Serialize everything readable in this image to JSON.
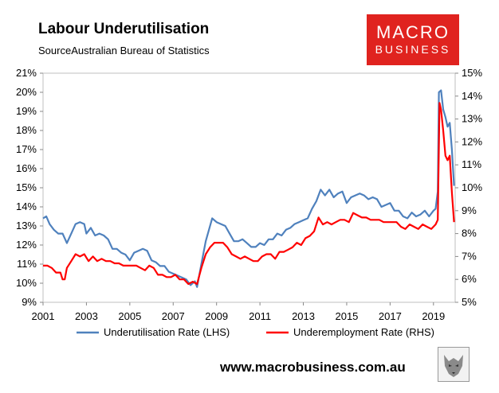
{
  "header": {
    "title": "Labour Underutilisation",
    "source": "SourceAustralian Bureau of Statistics"
  },
  "logo": {
    "line1": "MACRO",
    "line2": "BUSINESS",
    "color": "#e0231f"
  },
  "footer": {
    "url": "www.macrobusiness.com.au"
  },
  "chart_data": {
    "type": "line",
    "x_range": [
      2001.0,
      2020.0
    ],
    "x_ticks": [
      "2001",
      "2003",
      "2005",
      "2007",
      "2009",
      "2011",
      "2013",
      "2015",
      "2017",
      "2019"
    ],
    "y_left": {
      "min": 9,
      "max": 21,
      "ticks": [
        "9%",
        "10%",
        "11%",
        "12%",
        "13%",
        "14%",
        "15%",
        "16%",
        "17%",
        "18%",
        "19%",
        "20%",
        "21%"
      ]
    },
    "y_right": {
      "min": 5,
      "max": 15,
      "ticks": [
        "5%",
        "6%",
        "7%",
        "8%",
        "9%",
        "10%",
        "11%",
        "12%",
        "13%",
        "14%",
        "15%"
      ]
    },
    "grid": false,
    "legend_position": "bottom",
    "series": [
      {
        "name": "Underutilisation Rate (LHS)",
        "axis": "left",
        "color": "#4f81bd",
        "points": [
          [
            2001.0,
            13.4
          ],
          [
            2001.15,
            13.5
          ],
          [
            2001.3,
            13.1
          ],
          [
            2001.5,
            12.8
          ],
          [
            2001.7,
            12.6
          ],
          [
            2001.9,
            12.6
          ],
          [
            2002.1,
            12.1
          ],
          [
            2002.3,
            12.6
          ],
          [
            2002.5,
            13.1
          ],
          [
            2002.7,
            13.2
          ],
          [
            2002.9,
            13.1
          ],
          [
            2003.0,
            12.6
          ],
          [
            2003.2,
            12.9
          ],
          [
            2003.4,
            12.5
          ],
          [
            2003.6,
            12.6
          ],
          [
            2003.8,
            12.5
          ],
          [
            2004.0,
            12.3
          ],
          [
            2004.2,
            11.8
          ],
          [
            2004.4,
            11.8
          ],
          [
            2004.6,
            11.6
          ],
          [
            2004.8,
            11.5
          ],
          [
            2005.0,
            11.2
          ],
          [
            2005.2,
            11.6
          ],
          [
            2005.4,
            11.7
          ],
          [
            2005.6,
            11.8
          ],
          [
            2005.8,
            11.7
          ],
          [
            2006.0,
            11.2
          ],
          [
            2006.2,
            11.1
          ],
          [
            2006.4,
            10.9
          ],
          [
            2006.6,
            10.9
          ],
          [
            2006.8,
            10.6
          ],
          [
            2007.0,
            10.5
          ],
          [
            2007.2,
            10.4
          ],
          [
            2007.4,
            10.3
          ],
          [
            2007.6,
            10.2
          ],
          [
            2007.8,
            9.9
          ],
          [
            2008.0,
            10.1
          ],
          [
            2008.1,
            9.8
          ],
          [
            2008.3,
            11.0
          ],
          [
            2008.5,
            12.2
          ],
          [
            2008.7,
            13.0
          ],
          [
            2008.8,
            13.4
          ],
          [
            2009.0,
            13.2
          ],
          [
            2009.2,
            13.1
          ],
          [
            2009.4,
            13.0
          ],
          [
            2009.6,
            12.6
          ],
          [
            2009.8,
            12.2
          ],
          [
            2010.0,
            12.2
          ],
          [
            2010.2,
            12.3
          ],
          [
            2010.4,
            12.1
          ],
          [
            2010.6,
            11.9
          ],
          [
            2010.8,
            11.9
          ],
          [
            2011.0,
            12.1
          ],
          [
            2011.2,
            12.0
          ],
          [
            2011.4,
            12.3
          ],
          [
            2011.6,
            12.3
          ],
          [
            2011.8,
            12.6
          ],
          [
            2012.0,
            12.5
          ],
          [
            2012.2,
            12.8
          ],
          [
            2012.4,
            12.9
          ],
          [
            2012.6,
            13.1
          ],
          [
            2012.8,
            13.2
          ],
          [
            2013.0,
            13.3
          ],
          [
            2013.2,
            13.4
          ],
          [
            2013.4,
            13.9
          ],
          [
            2013.6,
            14.3
          ],
          [
            2013.8,
            14.9
          ],
          [
            2014.0,
            14.6
          ],
          [
            2014.2,
            14.9
          ],
          [
            2014.4,
            14.5
          ],
          [
            2014.6,
            14.7
          ],
          [
            2014.8,
            14.8
          ],
          [
            2015.0,
            14.2
          ],
          [
            2015.2,
            14.5
          ],
          [
            2015.4,
            14.6
          ],
          [
            2015.6,
            14.7
          ],
          [
            2015.8,
            14.6
          ],
          [
            2016.0,
            14.4
          ],
          [
            2016.2,
            14.5
          ],
          [
            2016.4,
            14.4
          ],
          [
            2016.6,
            14.0
          ],
          [
            2016.8,
            14.1
          ],
          [
            2017.0,
            14.2
          ],
          [
            2017.2,
            13.8
          ],
          [
            2017.4,
            13.8
          ],
          [
            2017.6,
            13.5
          ],
          [
            2017.8,
            13.4
          ],
          [
            2018.0,
            13.7
          ],
          [
            2018.2,
            13.5
          ],
          [
            2018.4,
            13.6
          ],
          [
            2018.6,
            13.8
          ],
          [
            2018.8,
            13.5
          ],
          [
            2019.0,
            13.8
          ],
          [
            2019.1,
            13.9
          ],
          [
            2019.2,
            14.8
          ],
          [
            2019.25,
            20.0
          ],
          [
            2019.35,
            20.1
          ],
          [
            2019.45,
            19.1
          ],
          [
            2019.55,
            18.7
          ],
          [
            2019.65,
            18.2
          ],
          [
            2019.75,
            18.4
          ],
          [
            2019.85,
            17.0
          ],
          [
            2019.95,
            15.1
          ]
        ]
      },
      {
        "name": "Underemployment Rate (RHS)",
        "axis": "right",
        "color": "#ff0000",
        "points": [
          [
            2001.0,
            6.6
          ],
          [
            2001.2,
            6.6
          ],
          [
            2001.4,
            6.5
          ],
          [
            2001.6,
            6.3
          ],
          [
            2001.8,
            6.3
          ],
          [
            2001.9,
            6.0
          ],
          [
            2002.0,
            6.0
          ],
          [
            2002.1,
            6.5
          ],
          [
            2002.3,
            6.8
          ],
          [
            2002.5,
            7.1
          ],
          [
            2002.7,
            7.0
          ],
          [
            2002.9,
            7.1
          ],
          [
            2003.1,
            6.8
          ],
          [
            2003.3,
            7.0
          ],
          [
            2003.5,
            6.8
          ],
          [
            2003.7,
            6.9
          ],
          [
            2003.9,
            6.8
          ],
          [
            2004.1,
            6.8
          ],
          [
            2004.3,
            6.7
          ],
          [
            2004.5,
            6.7
          ],
          [
            2004.7,
            6.6
          ],
          [
            2004.9,
            6.6
          ],
          [
            2005.1,
            6.6
          ],
          [
            2005.3,
            6.6
          ],
          [
            2005.5,
            6.5
          ],
          [
            2005.7,
            6.4
          ],
          [
            2005.9,
            6.6
          ],
          [
            2006.1,
            6.5
          ],
          [
            2006.3,
            6.2
          ],
          [
            2006.5,
            6.2
          ],
          [
            2006.7,
            6.1
          ],
          [
            2006.9,
            6.1
          ],
          [
            2007.1,
            6.2
          ],
          [
            2007.3,
            6.0
          ],
          [
            2007.5,
            6.0
          ],
          [
            2007.7,
            5.8
          ],
          [
            2007.9,
            5.9
          ],
          [
            2008.1,
            5.8
          ],
          [
            2008.3,
            6.5
          ],
          [
            2008.5,
            7.1
          ],
          [
            2008.7,
            7.4
          ],
          [
            2008.9,
            7.6
          ],
          [
            2009.1,
            7.6
          ],
          [
            2009.3,
            7.6
          ],
          [
            2009.5,
            7.4
          ],
          [
            2009.7,
            7.1
          ],
          [
            2009.9,
            7.0
          ],
          [
            2010.1,
            6.9
          ],
          [
            2010.3,
            7.0
          ],
          [
            2010.5,
            6.9
          ],
          [
            2010.7,
            6.8
          ],
          [
            2010.9,
            6.8
          ],
          [
            2011.1,
            7.0
          ],
          [
            2011.3,
            7.1
          ],
          [
            2011.5,
            7.1
          ],
          [
            2011.7,
            6.9
          ],
          [
            2011.9,
            7.2
          ],
          [
            2012.1,
            7.2
          ],
          [
            2012.3,
            7.3
          ],
          [
            2012.5,
            7.4
          ],
          [
            2012.7,
            7.6
          ],
          [
            2012.9,
            7.5
          ],
          [
            2013.1,
            7.8
          ],
          [
            2013.3,
            7.9
          ],
          [
            2013.5,
            8.1
          ],
          [
            2013.7,
            8.7
          ],
          [
            2013.9,
            8.4
          ],
          [
            2014.1,
            8.5
          ],
          [
            2014.3,
            8.4
          ],
          [
            2014.5,
            8.5
          ],
          [
            2014.7,
            8.6
          ],
          [
            2014.9,
            8.6
          ],
          [
            2015.1,
            8.5
          ],
          [
            2015.3,
            8.9
          ],
          [
            2015.5,
            8.8
          ],
          [
            2015.7,
            8.7
          ],
          [
            2015.9,
            8.7
          ],
          [
            2016.1,
            8.6
          ],
          [
            2016.3,
            8.6
          ],
          [
            2016.5,
            8.6
          ],
          [
            2016.7,
            8.5
          ],
          [
            2016.9,
            8.5
          ],
          [
            2017.1,
            8.5
          ],
          [
            2017.3,
            8.5
          ],
          [
            2017.5,
            8.3
          ],
          [
            2017.7,
            8.2
          ],
          [
            2017.9,
            8.4
          ],
          [
            2018.1,
            8.3
          ],
          [
            2018.3,
            8.2
          ],
          [
            2018.5,
            8.4
          ],
          [
            2018.7,
            8.3
          ],
          [
            2018.9,
            8.2
          ],
          [
            2019.1,
            8.4
          ],
          [
            2019.2,
            8.6
          ],
          [
            2019.28,
            13.7
          ],
          [
            2019.35,
            13.4
          ],
          [
            2019.45,
            12.5
          ],
          [
            2019.55,
            11.4
          ],
          [
            2019.65,
            11.2
          ],
          [
            2019.75,
            11.4
          ],
          [
            2019.85,
            9.8
          ],
          [
            2019.95,
            8.5
          ]
        ]
      }
    ]
  }
}
